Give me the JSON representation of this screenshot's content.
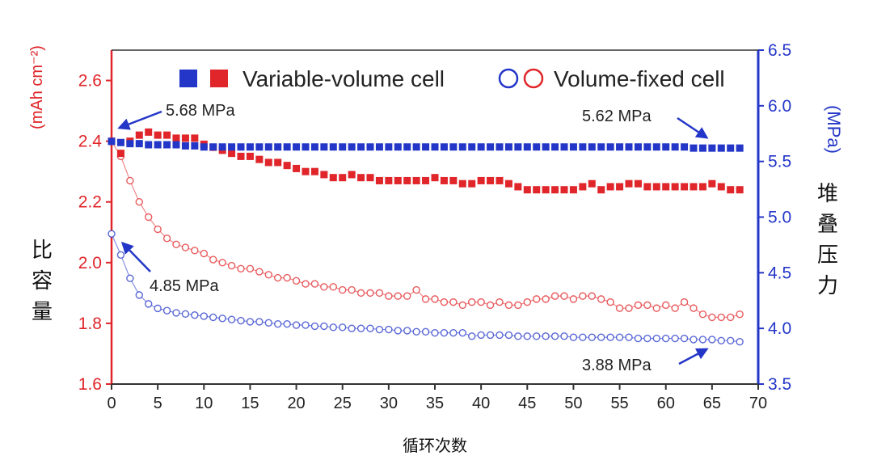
{
  "chart_data": {
    "type": "scatter",
    "x_label": "循环次数",
    "y_label_left_cn": [
      "比",
      "容",
      "量"
    ],
    "y_label_left_unit": "(mAh cm⁻²)",
    "y_label_right_cn": [
      "堆",
      "叠",
      "压",
      "力"
    ],
    "y_label_right_unit": "(MPa)",
    "x_range": [
      0,
      70
    ],
    "y_left_range": [
      1.6,
      2.7
    ],
    "y_right_range": [
      3.5,
      6.5
    ],
    "x_ticks": [
      "0",
      "5",
      "10",
      "15",
      "20",
      "25",
      "30",
      "35",
      "40",
      "45",
      "50",
      "55",
      "60",
      "65",
      "70"
    ],
    "y_left_ticks": [
      "1.6",
      "1.8",
      "2.0",
      "2.2",
      "2.4",
      "2.6"
    ],
    "y_right_ticks": [
      "3.5",
      "4.0",
      "4.5",
      "5.0",
      "5.5",
      "6.0",
      "6.5"
    ],
    "legend": {
      "variable_label": "Variable-volume cell",
      "fixed_label": "Volume-fixed cell"
    },
    "colors": {
      "capacity": "#e0262a",
      "pressure": "#2336c8"
    },
    "annotations": [
      {
        "text": "5.68 MPa"
      },
      {
        "text": "5.62 MPa"
      },
      {
        "text": "4.85 MPa"
      },
      {
        "text": "3.88 MPa"
      }
    ],
    "series": [
      {
        "name": "Variable-volume capacity",
        "axis": "left",
        "marker": "square-filled",
        "x": [
          0,
          1,
          2,
          3,
          4,
          5,
          6,
          7,
          8,
          9,
          10,
          11,
          12,
          13,
          14,
          15,
          16,
          17,
          18,
          19,
          20,
          21,
          22,
          23,
          24,
          25,
          26,
          27,
          28,
          29,
          30,
          31,
          32,
          33,
          34,
          35,
          36,
          37,
          38,
          39,
          40,
          41,
          42,
          43,
          44,
          45,
          46,
          47,
          48,
          49,
          50,
          51,
          52,
          53,
          54,
          55,
          56,
          57,
          58,
          59,
          60,
          61,
          62,
          63,
          64,
          65,
          66,
          67,
          68
        ],
        "y": [
          2.4,
          2.36,
          2.4,
          2.42,
          2.43,
          2.42,
          2.42,
          2.41,
          2.41,
          2.41,
          2.39,
          2.38,
          2.37,
          2.36,
          2.35,
          2.35,
          2.34,
          2.33,
          2.33,
          2.32,
          2.31,
          2.3,
          2.3,
          2.29,
          2.28,
          2.28,
          2.29,
          2.28,
          2.28,
          2.27,
          2.27,
          2.27,
          2.27,
          2.27,
          2.27,
          2.28,
          2.27,
          2.27,
          2.26,
          2.26,
          2.27,
          2.27,
          2.27,
          2.26,
          2.25,
          2.24,
          2.24,
          2.24,
          2.24,
          2.24,
          2.24,
          2.25,
          2.26,
          2.24,
          2.25,
          2.25,
          2.26,
          2.26,
          2.25,
          2.25,
          2.25,
          2.25,
          2.25,
          2.25,
          2.25,
          2.26,
          2.25,
          2.24,
          2.24
        ]
      },
      {
        "name": "Volume-fixed capacity",
        "axis": "left",
        "marker": "circle-open",
        "x": [
          0,
          1,
          2,
          3,
          4,
          5,
          6,
          7,
          8,
          9,
          10,
          11,
          12,
          13,
          14,
          15,
          16,
          17,
          18,
          19,
          20,
          21,
          22,
          23,
          24,
          25,
          26,
          27,
          28,
          29,
          30,
          31,
          32,
          33,
          34,
          35,
          36,
          37,
          38,
          39,
          40,
          41,
          42,
          43,
          44,
          45,
          46,
          47,
          48,
          49,
          50,
          51,
          52,
          53,
          54,
          55,
          56,
          57,
          58,
          59,
          60,
          61,
          62,
          63,
          64,
          65,
          66,
          67,
          68
        ],
        "y": [
          2.4,
          2.35,
          2.27,
          2.2,
          2.15,
          2.11,
          2.08,
          2.06,
          2.05,
          2.04,
          2.03,
          2.01,
          2.0,
          1.99,
          1.98,
          1.98,
          1.97,
          1.96,
          1.95,
          1.95,
          1.94,
          1.93,
          1.93,
          1.92,
          1.92,
          1.91,
          1.91,
          1.9,
          1.9,
          1.9,
          1.89,
          1.89,
          1.89,
          1.91,
          1.88,
          1.88,
          1.87,
          1.87,
          1.86,
          1.87,
          1.87,
          1.86,
          1.87,
          1.86,
          1.86,
          1.87,
          1.88,
          1.88,
          1.89,
          1.89,
          1.88,
          1.89,
          1.89,
          1.88,
          1.87,
          1.85,
          1.85,
          1.86,
          1.86,
          1.85,
          1.86,
          1.85,
          1.87,
          1.85,
          1.83,
          1.82,
          1.82,
          1.82,
          1.83
        ]
      },
      {
        "name": "Variable-volume pressure",
        "axis": "right",
        "marker": "square-filled",
        "x": [
          0,
          1,
          2,
          3,
          4,
          5,
          6,
          7,
          8,
          9,
          10,
          11,
          12,
          13,
          14,
          15,
          16,
          17,
          18,
          19,
          20,
          21,
          22,
          23,
          24,
          25,
          26,
          27,
          28,
          29,
          30,
          31,
          32,
          33,
          34,
          35,
          36,
          37,
          38,
          39,
          40,
          41,
          42,
          43,
          44,
          45,
          46,
          47,
          48,
          49,
          50,
          51,
          52,
          53,
          54,
          55,
          56,
          57,
          58,
          59,
          60,
          61,
          62,
          63,
          64,
          65,
          66,
          67,
          68
        ],
        "y": [
          5.68,
          5.67,
          5.66,
          5.66,
          5.65,
          5.65,
          5.65,
          5.65,
          5.64,
          5.64,
          5.63,
          5.63,
          5.63,
          5.63,
          5.63,
          5.63,
          5.63,
          5.63,
          5.63,
          5.63,
          5.63,
          5.63,
          5.63,
          5.63,
          5.63,
          5.63,
          5.63,
          5.63,
          5.63,
          5.63,
          5.63,
          5.63,
          5.63,
          5.63,
          5.63,
          5.63,
          5.63,
          5.63,
          5.63,
          5.63,
          5.63,
          5.63,
          5.63,
          5.63,
          5.63,
          5.63,
          5.63,
          5.63,
          5.63,
          5.63,
          5.63,
          5.63,
          5.63,
          5.63,
          5.63,
          5.63,
          5.63,
          5.63,
          5.63,
          5.63,
          5.63,
          5.63,
          5.63,
          5.62,
          5.62,
          5.62,
          5.62,
          5.62,
          5.62
        ]
      },
      {
        "name": "Volume-fixed pressure",
        "axis": "right",
        "marker": "circle-open",
        "x": [
          0,
          1,
          2,
          3,
          4,
          5,
          6,
          7,
          8,
          9,
          10,
          11,
          12,
          13,
          14,
          15,
          16,
          17,
          18,
          19,
          20,
          21,
          22,
          23,
          24,
          25,
          26,
          27,
          28,
          29,
          30,
          31,
          32,
          33,
          34,
          35,
          36,
          37,
          38,
          39,
          40,
          41,
          42,
          43,
          44,
          45,
          46,
          47,
          48,
          49,
          50,
          51,
          52,
          53,
          54,
          55,
          56,
          57,
          58,
          59,
          60,
          61,
          62,
          63,
          64,
          65,
          66,
          67,
          68
        ],
        "y": [
          4.85,
          4.66,
          4.45,
          4.3,
          4.22,
          4.18,
          4.16,
          4.14,
          4.13,
          4.12,
          4.11,
          4.1,
          4.09,
          4.08,
          4.07,
          4.06,
          4.06,
          4.05,
          4.04,
          4.04,
          4.03,
          4.03,
          4.02,
          4.02,
          4.01,
          4.01,
          4.0,
          4.0,
          4.0,
          3.99,
          3.99,
          3.98,
          3.98,
          3.97,
          3.97,
          3.96,
          3.96,
          3.96,
          3.96,
          3.93,
          3.94,
          3.94,
          3.94,
          3.94,
          3.93,
          3.93,
          3.93,
          3.93,
          3.93,
          3.93,
          3.92,
          3.92,
          3.92,
          3.92,
          3.92,
          3.92,
          3.92,
          3.91,
          3.91,
          3.91,
          3.91,
          3.91,
          3.91,
          3.9,
          3.9,
          3.9,
          3.89,
          3.89,
          3.88
        ]
      }
    ]
  }
}
